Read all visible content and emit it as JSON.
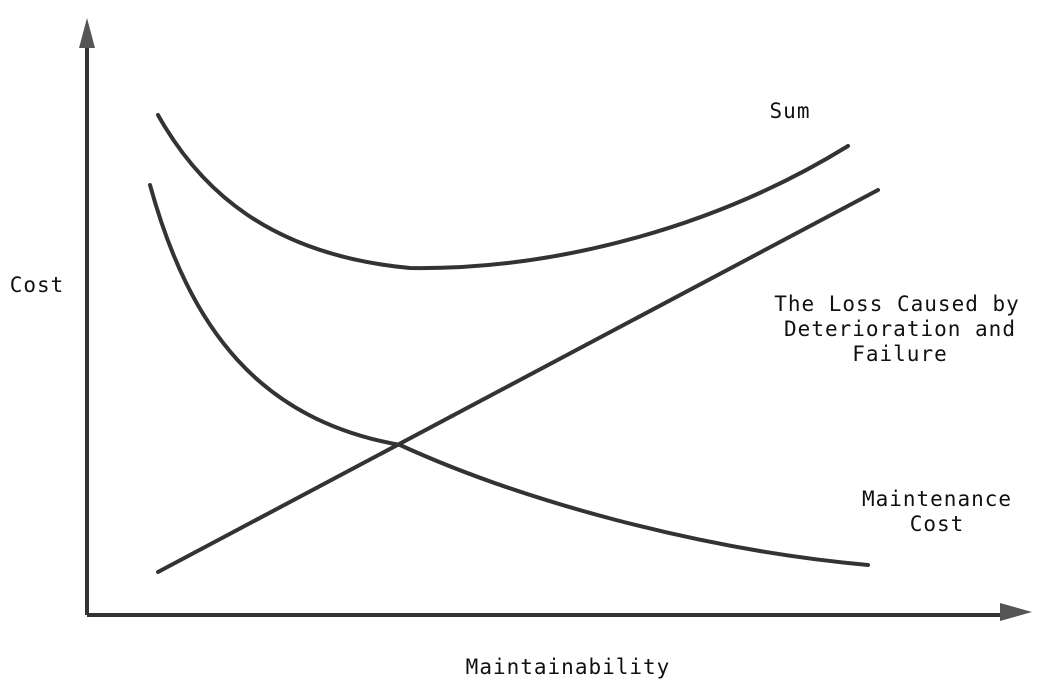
{
  "axes": {
    "y_label": "Cost",
    "x_label": "Maintainability"
  },
  "curves": [
    {
      "label_lines": [
        "Sum"
      ]
    },
    {
      "label_lines": [
        "The Loss Caused by",
        "Deterioration and",
        "Failure"
      ]
    },
    {
      "label_lines": [
        "Maintenance",
        "Cost"
      ]
    }
  ]
}
